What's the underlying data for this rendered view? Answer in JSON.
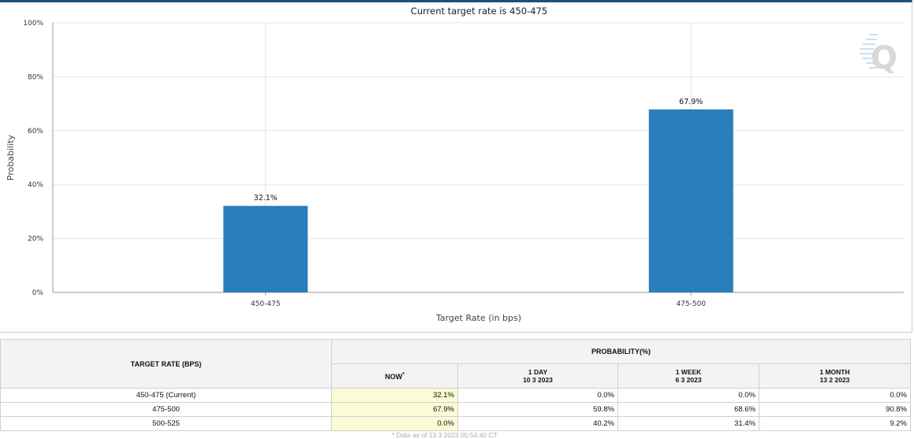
{
  "chart_data": {
    "type": "bar",
    "title": "Current target rate is 450-475",
    "xlabel": "Target Rate (in bps)",
    "ylabel": "Probability",
    "categories": [
      "450-475",
      "475-500"
    ],
    "values": [
      32.1,
      67.9
    ],
    "data_labels": [
      "32.1%",
      "67.9%"
    ],
    "ylim": [
      0,
      100
    ],
    "yticks": [
      "0%",
      "20%",
      "40%",
      "60%",
      "80%",
      "100%"
    ],
    "bar_color": "#2a7fba",
    "grid": true
  },
  "watermark": "Q",
  "table": {
    "col_rate_header": "TARGET RATE (BPS)",
    "prob_header": "PROBABILITY(%)",
    "sub_headers": [
      {
        "label": "NOW",
        "sup": "*",
        "date": ""
      },
      {
        "label": "1 DAY",
        "sup": "",
        "date": "10 3 2023"
      },
      {
        "label": "1 WEEK",
        "sup": "",
        "date": "6 3 2023"
      },
      {
        "label": "1 MONTH",
        "sup": "",
        "date": "13 2 2023"
      }
    ],
    "rows": [
      {
        "rate": "450-475 (Current)",
        "now": "32.1%",
        "day": "0.0%",
        "week": "0.0%",
        "month": "0.0%"
      },
      {
        "rate": "475-500",
        "now": "67.9%",
        "day": "59.8%",
        "week": "68.6%",
        "month": "90.8%"
      },
      {
        "rate": "500-525",
        "now": "0.0%",
        "day": "40.2%",
        "week": "31.4%",
        "month": "9.2%"
      }
    ],
    "footnote": "* Data as of 13 3 2023 05:54:40 CT"
  }
}
